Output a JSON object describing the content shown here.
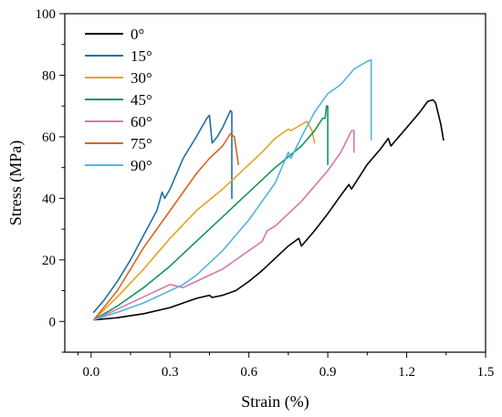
{
  "chart_data": {
    "type": "line",
    "xlabel": "Strain (%)",
    "ylabel": "Stress (MPa)",
    "xlim": [
      -0.1,
      1.5
    ],
    "ylim": [
      -10,
      100
    ],
    "xticks": [
      "0.0",
      "0.3",
      "0.6",
      "0.9",
      "1.2",
      "1.5"
    ],
    "yticks": [
      "0",
      "20",
      "40",
      "60",
      "80",
      "100"
    ],
    "grid": false,
    "legend_position": "top-left",
    "series": [
      {
        "name": "0°",
        "color": "#000000",
        "x": [
          0.01,
          0.1,
          0.2,
          0.3,
          0.4,
          0.45,
          0.46,
          0.5,
          0.55,
          0.6,
          0.65,
          0.7,
          0.75,
          0.79,
          0.8,
          0.85,
          0.9,
          0.95,
          0.98,
          0.99,
          1.05,
          1.1,
          1.13,
          1.14,
          1.2,
          1.25,
          1.28,
          1.3,
          1.31,
          1.33,
          1.34
        ],
        "y": [
          0.5,
          1.2,
          2.5,
          4.5,
          7.5,
          8.5,
          7.8,
          8.5,
          10,
          13,
          16.5,
          20.5,
          24.5,
          27,
          24.5,
          29.5,
          35,
          41,
          44.5,
          43,
          51,
          56,
          59.5,
          57,
          63,
          68,
          71.5,
          72,
          71,
          64,
          59
        ]
      },
      {
        "name": "15°",
        "color": "#1f6fa8",
        "x": [
          0.01,
          0.05,
          0.1,
          0.15,
          0.2,
          0.25,
          0.27,
          0.28,
          0.3,
          0.32,
          0.35,
          0.4,
          0.44,
          0.45,
          0.46,
          0.48,
          0.5,
          0.53,
          0.535,
          0.535
        ],
        "y": [
          3,
          7,
          13,
          20,
          28,
          36,
          42,
          40,
          43,
          47,
          53,
          60,
          66,
          67,
          58,
          60,
          63,
          68.5,
          68,
          40
        ]
      },
      {
        "name": "30°",
        "color": "#e3a41f",
        "x": [
          0.01,
          0.1,
          0.2,
          0.3,
          0.4,
          0.5,
          0.55,
          0.6,
          0.65,
          0.7,
          0.75,
          0.76,
          0.8,
          0.82,
          0.84,
          0.85
        ],
        "y": [
          0.5,
          8,
          17,
          27,
          36,
          43,
          47,
          51,
          55,
          59.5,
          62.5,
          62,
          64,
          65,
          62,
          58
        ]
      },
      {
        "name": "45°",
        "color": "#119460",
        "x": [
          0.01,
          0.1,
          0.2,
          0.3,
          0.4,
          0.5,
          0.6,
          0.7,
          0.8,
          0.85,
          0.88,
          0.89,
          0.895,
          0.9,
          0.9
        ],
        "y": [
          0.5,
          5,
          11,
          18,
          26,
          34,
          42,
          50,
          57,
          62,
          66,
          66,
          70,
          70,
          51
        ]
      },
      {
        "name": "60°",
        "color": "#d677a9",
        "x": [
          0.01,
          0.1,
          0.2,
          0.3,
          0.35,
          0.4,
          0.5,
          0.6,
          0.65,
          0.67,
          0.7,
          0.8,
          0.9,
          0.95,
          0.99,
          1.0,
          1.0
        ],
        "y": [
          0.5,
          4,
          8,
          12,
          11,
          13,
          17,
          23,
          26,
          29.5,
          31,
          39,
          49,
          55,
          62,
          62,
          55
        ]
      },
      {
        "name": "75°",
        "color": "#d96520",
        "x": [
          0.01,
          0.1,
          0.15,
          0.2,
          0.25,
          0.3,
          0.35,
          0.4,
          0.45,
          0.5,
          0.53,
          0.545,
          0.56
        ],
        "y": [
          0.5,
          10,
          17,
          24,
          30,
          36,
          42,
          48,
          53,
          57,
          61,
          60,
          51
        ]
      },
      {
        "name": "90°",
        "color": "#55b4e0",
        "x": [
          0.01,
          0.1,
          0.2,
          0.3,
          0.35,
          0.4,
          0.5,
          0.6,
          0.7,
          0.75,
          0.76,
          0.8,
          0.85,
          0.9,
          0.95,
          1.0,
          1.05,
          1.065,
          1.065
        ],
        "y": [
          0.5,
          3,
          6,
          10,
          12,
          15,
          23,
          33,
          45,
          55,
          53,
          60,
          68,
          74,
          77,
          82,
          84.5,
          85,
          59
        ]
      }
    ]
  }
}
